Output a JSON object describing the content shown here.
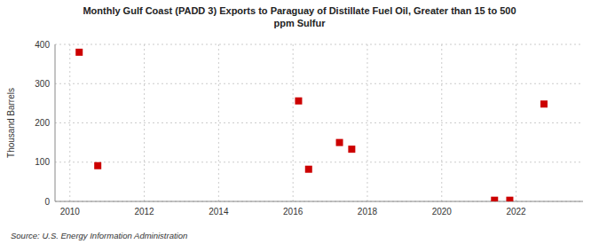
{
  "chart_data": {
    "type": "scatter",
    "title": "Monthly Gulf Coast (PADD 3) Exports to Paraguay of Distillate Fuel Oil, Greater than 15 to 500\nppm Sulfur",
    "ylabel": "Thousand Barrels",
    "source": "Source: U.S. Energy Information Administration",
    "x": [
      2010.25,
      2010.75,
      2016.15,
      2016.42,
      2017.25,
      2017.58,
      2021.42,
      2021.83,
      2022.75
    ],
    "values": [
      380,
      91,
      256,
      82,
      150,
      133,
      3,
      3,
      248
    ],
    "color": "#cc0000",
    "marker": "square",
    "xlim": [
      2009.6,
      2023.8
    ],
    "ylim": [
      0,
      400
    ],
    "xticks": [
      2010,
      2012,
      2014,
      2016,
      2018,
      2020,
      2022
    ],
    "yticks": [
      0,
      100,
      200,
      300,
      400
    ],
    "grid": true
  }
}
